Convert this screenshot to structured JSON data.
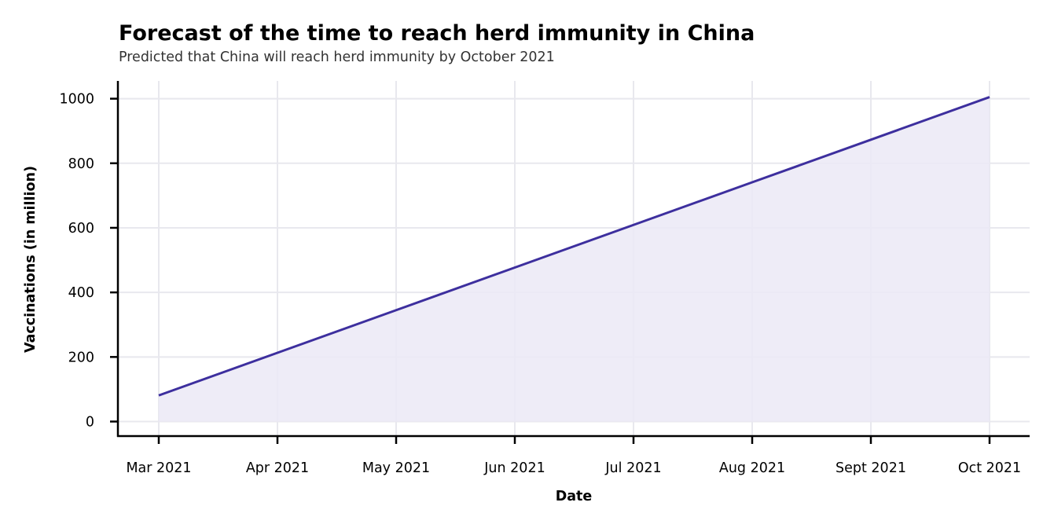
{
  "chart_data": {
    "type": "area",
    "title": "Forecast of the time to reach herd immunity in China",
    "subtitle": "Predicted that China will reach herd immunity by October 2021",
    "xlabel": "Date",
    "ylabel": "Vaccinations (in million)",
    "x_ticks": [
      "Mar 2021",
      "Apr 2021",
      "May 2021",
      "Jun 2021",
      "Jul 2021",
      "Aug 2021",
      "Sept 2021",
      "Oct 2021"
    ],
    "y_ticks": [
      0,
      200,
      400,
      600,
      800,
      1000
    ],
    "ylim": [
      -45,
      1055
    ],
    "series": [
      {
        "values": [
          81,
          213,
          345,
          477,
          609,
          741,
          873,
          1005
        ]
      }
    ],
    "grid": true,
    "legend": "none",
    "colors": {
      "line": "#3d2f9e",
      "fill": "#ebe9f6",
      "grid": "#e8e8ee",
      "axis": "#000000"
    }
  }
}
